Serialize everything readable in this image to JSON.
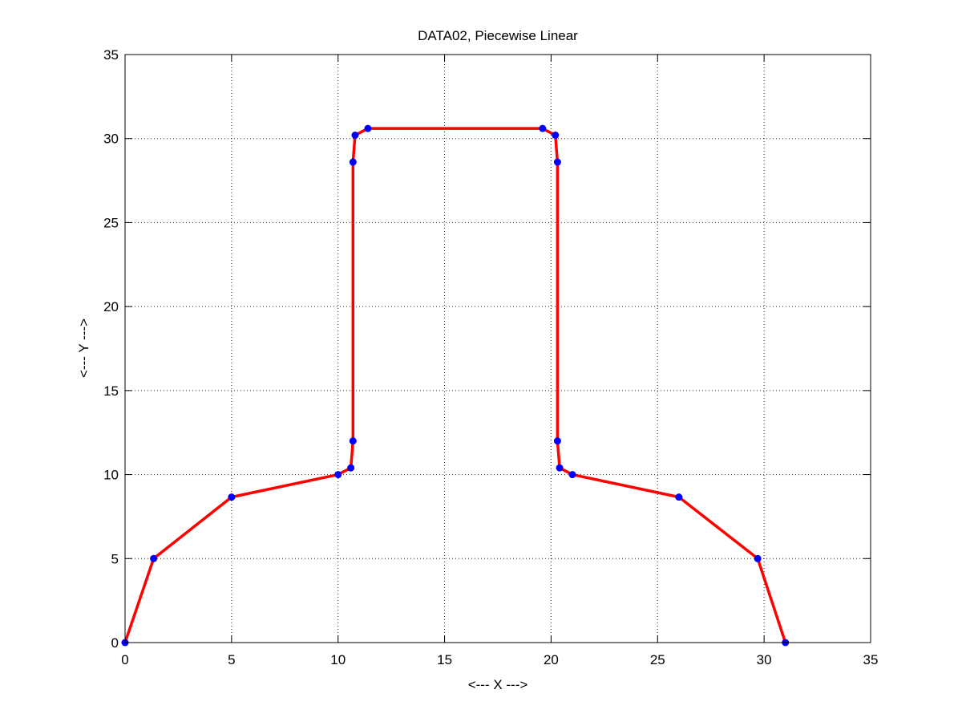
{
  "chart_data": {
    "type": "line",
    "title": "DATA02, Piecewise Linear",
    "xlabel": "<--- X --->",
    "ylabel": "<--- Y --->",
    "xlim": [
      0,
      35
    ],
    "ylim": [
      0,
      35
    ],
    "x_ticks": [
      0,
      5,
      10,
      15,
      20,
      25,
      30,
      35
    ],
    "y_ticks": [
      0,
      5,
      10,
      15,
      20,
      25,
      30,
      35
    ],
    "x_tick_labels": [
      "0",
      "5",
      "10",
      "15",
      "20",
      "25",
      "30",
      "35"
    ],
    "y_tick_labels": [
      "0",
      "5",
      "10",
      "15",
      "20",
      "25",
      "30",
      "35"
    ],
    "grid": true,
    "series": [
      {
        "line_color": "#ff0000",
        "marker_color": "#0000ff",
        "x": [
          0.0,
          1.34,
          5.0,
          10.0,
          10.6,
          10.7,
          10.7,
          10.8,
          11.4,
          19.6,
          20.2,
          20.3,
          20.3,
          20.4,
          21.0,
          26.0,
          29.7,
          31.0
        ],
        "y": [
          0.0,
          5.0,
          8.66,
          10.0,
          10.4,
          12.0,
          28.6,
          30.2,
          30.6,
          30.6,
          30.2,
          28.6,
          12.0,
          10.4,
          10.0,
          8.66,
          5.0,
          0.0
        ]
      }
    ]
  }
}
